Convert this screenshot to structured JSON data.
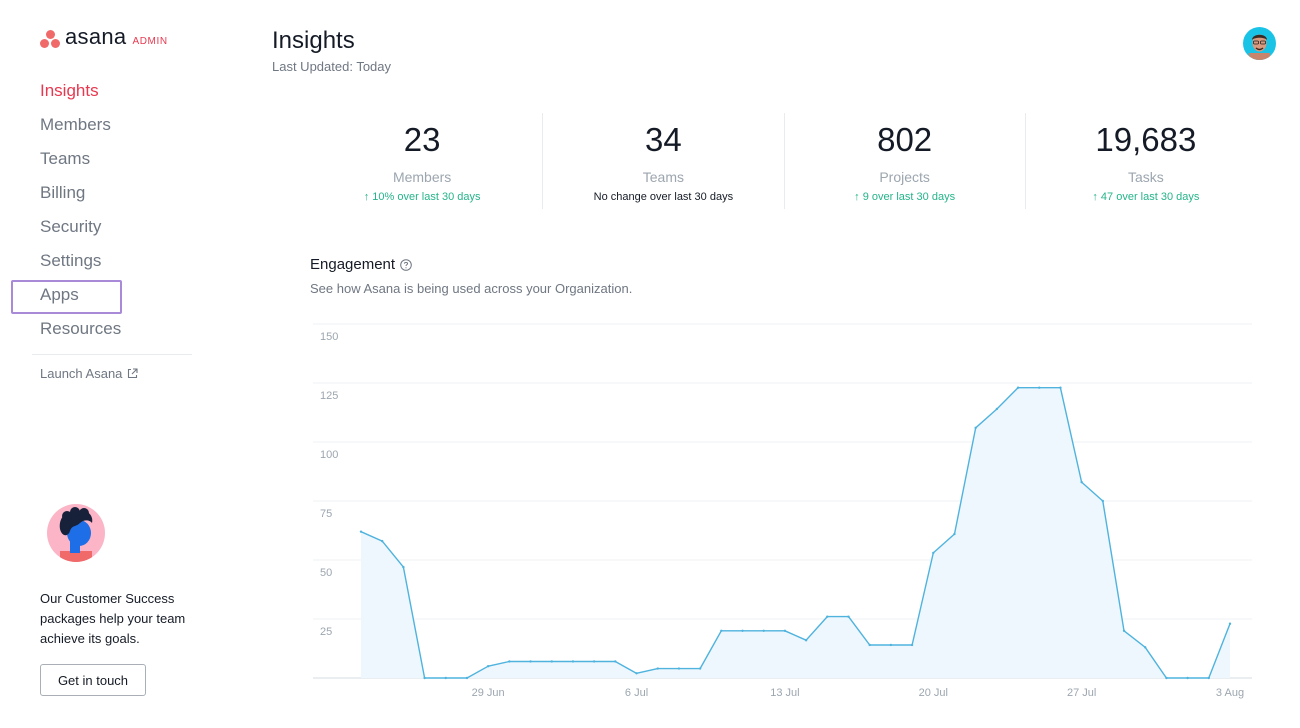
{
  "sidebar": {
    "logo": {
      "wordmark": "asana",
      "badge": "ADMIN"
    },
    "nav": [
      {
        "label": "Insights",
        "active": true
      },
      {
        "label": "Members"
      },
      {
        "label": "Teams"
      },
      {
        "label": "Billing"
      },
      {
        "label": "Security"
      },
      {
        "label": "Settings"
      },
      {
        "label": "Apps",
        "highlighted": true
      },
      {
        "label": "Resources"
      }
    ],
    "launch_label": "Launch Asana",
    "customer_success": {
      "text": "Our Customer Success packages help your team achieve its goals.",
      "button_label": "Get in touch"
    }
  },
  "header": {
    "title": "Insights",
    "last_updated": "Last Updated: Today"
  },
  "stats": [
    {
      "value": "23",
      "label": "Members",
      "change": "10% over last 30 days",
      "trend": "up"
    },
    {
      "value": "34",
      "label": "Teams",
      "change": "No change over last 30 days",
      "trend": "none"
    },
    {
      "value": "802",
      "label": "Projects",
      "change": "9 over last 30 days",
      "trend": "up"
    },
    {
      "value": "19,683",
      "label": "Tasks",
      "change": "47 over last 30 days",
      "trend": "up"
    }
  ],
  "engagement": {
    "title": "Engagement",
    "subtitle": "See how Asana is being used across your Organization."
  },
  "colors": {
    "accent": "#e8384f",
    "positive": "#25b48a",
    "chart_line": "#4fb3de",
    "chart_fill": "#eef7fd",
    "highlight": "#a98ad8"
  },
  "icons": [
    "help-circle-icon",
    "external-link-icon",
    "up-arrow-icon"
  ],
  "chart_data": {
    "type": "area",
    "yticks": [
      25,
      50,
      75,
      100,
      125,
      150
    ],
    "ylim": [
      0,
      150
    ],
    "grid": true,
    "xtick_labels": [
      "29 Jun",
      "6 Jul",
      "13 Jul",
      "20 Jul",
      "27 Jul",
      "3 Aug"
    ],
    "series": [
      {
        "values": [
          62,
          58,
          47,
          0,
          0,
          0,
          5,
          7,
          7,
          7,
          7,
          7,
          7,
          2,
          4,
          4,
          4,
          20,
          20,
          20,
          20,
          16,
          26,
          26,
          14,
          14,
          14,
          53,
          61,
          106,
          114,
          123,
          123,
          123,
          83,
          75,
          20,
          13,
          0,
          0,
          0,
          23
        ]
      }
    ]
  }
}
